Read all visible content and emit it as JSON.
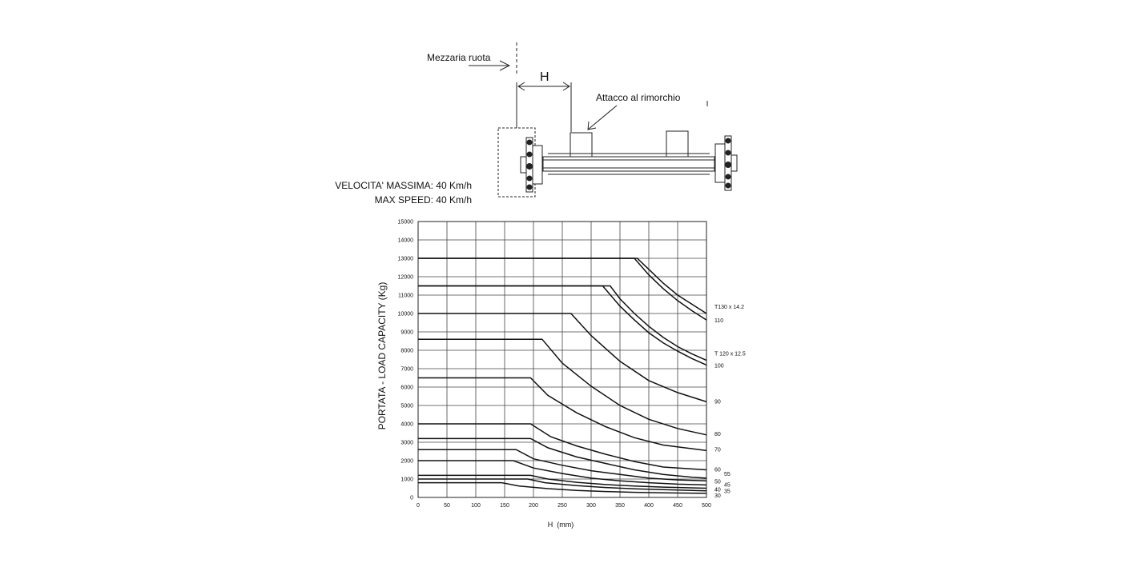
{
  "diagram": {
    "wheel_centerline_label": "Mezzaria ruota",
    "dimension_label": "H",
    "trailer_mount_label": "Attacco al rimorchio"
  },
  "speed": {
    "it": "VELOCITA' MASSIMA: 40 Km/h",
    "en": "MAX SPEED: 40 Km/h"
  },
  "chart_data": {
    "type": "line",
    "title": "",
    "xlabel": "H  (mm)",
    "ylabel": "PORTATA - LOAD CAPACITY (Kg)",
    "xlim": [
      0,
      500
    ],
    "ylim": [
      0,
      15000
    ],
    "grid": true,
    "x_ticks": [
      0,
      50,
      100,
      150,
      200,
      250,
      300,
      350,
      400,
      450,
      500
    ],
    "x_tick_labels": [
      "0",
      "50",
      "100",
      "150",
      "200",
      "250",
      "300",
      "350",
      "400",
      "450",
      "500"
    ],
    "y_ticks": [
      0,
      1000,
      2000,
      3000,
      4000,
      5000,
      6000,
      7000,
      8000,
      9000,
      10000,
      11000,
      12000,
      13000,
      14000,
      15000
    ],
    "y_tick_labels": [
      "0",
      "1000",
      "2000",
      "3000",
      "4000",
      "5000",
      "6000",
      "7000",
      "8000",
      "9000",
      "10000",
      "11000",
      "12000",
      "13000",
      "14000",
      "15000"
    ],
    "series": [
      {
        "name": "T130 x 14.2",
        "values": [
          [
            0,
            13000
          ],
          [
            380,
            13000
          ],
          [
            400,
            12400
          ],
          [
            425,
            11650
          ],
          [
            450,
            11000
          ],
          [
            475,
            10500
          ],
          [
            500,
            10000
          ]
        ]
      },
      {
        "name": "110",
        "values": [
          [
            0,
            13000
          ],
          [
            375,
            13000
          ],
          [
            400,
            12100
          ],
          [
            425,
            11350
          ],
          [
            450,
            10700
          ],
          [
            475,
            10150
          ],
          [
            500,
            9650
          ]
        ]
      },
      {
        "name": "T 120 x 12.5",
        "values": [
          [
            0,
            11500
          ],
          [
            333,
            11500
          ],
          [
            350,
            10800
          ],
          [
            375,
            10000
          ],
          [
            400,
            9300
          ],
          [
            425,
            8700
          ],
          [
            450,
            8200
          ],
          [
            475,
            7800
          ],
          [
            500,
            7450
          ]
        ]
      },
      {
        "name": "100",
        "values": [
          [
            0,
            11500
          ],
          [
            320,
            11500
          ],
          [
            350,
            10400
          ],
          [
            375,
            9650
          ],
          [
            400,
            8950
          ],
          [
            425,
            8400
          ],
          [
            450,
            7950
          ],
          [
            475,
            7550
          ],
          [
            500,
            7200
          ]
        ]
      },
      {
        "name": "90",
        "values": [
          [
            0,
            10000
          ],
          [
            265,
            10000
          ],
          [
            300,
            8800
          ],
          [
            350,
            7400
          ],
          [
            400,
            6350
          ],
          [
            450,
            5700
          ],
          [
            500,
            5200
          ]
        ]
      },
      {
        "name": "80",
        "values": [
          [
            0,
            8600
          ],
          [
            215,
            8600
          ],
          [
            250,
            7300
          ],
          [
            300,
            6050
          ],
          [
            350,
            5000
          ],
          [
            400,
            4250
          ],
          [
            450,
            3750
          ],
          [
            500,
            3400
          ]
        ]
      },
      {
        "name": "70",
        "values": [
          [
            0,
            6500
          ],
          [
            195,
            6500
          ],
          [
            225,
            5550
          ],
          [
            275,
            4600
          ],
          [
            325,
            3850
          ],
          [
            375,
            3250
          ],
          [
            425,
            2850
          ],
          [
            500,
            2550
          ]
        ]
      },
      {
        "name": "60",
        "values": [
          [
            0,
            4000
          ],
          [
            195,
            4000
          ],
          [
            230,
            3300
          ],
          [
            275,
            2800
          ],
          [
            325,
            2350
          ],
          [
            375,
            1950
          ],
          [
            425,
            1650
          ],
          [
            475,
            1550
          ],
          [
            500,
            1500
          ]
        ]
      },
      {
        "name": "55",
        "values": [
          [
            0,
            3200
          ],
          [
            195,
            3200
          ],
          [
            225,
            2700
          ],
          [
            275,
            2200
          ],
          [
            325,
            1850
          ],
          [
            375,
            1500
          ],
          [
            425,
            1250
          ],
          [
            475,
            1100
          ],
          [
            500,
            1050
          ]
        ]
      },
      {
        "name": "50",
        "values": [
          [
            0,
            2600
          ],
          [
            170,
            2600
          ],
          [
            200,
            2100
          ],
          [
            250,
            1750
          ],
          [
            300,
            1450
          ],
          [
            350,
            1250
          ],
          [
            400,
            1050
          ],
          [
            450,
            950
          ],
          [
            500,
            900
          ]
        ]
      },
      {
        "name": "45",
        "values": [
          [
            0,
            2000
          ],
          [
            165,
            2000
          ],
          [
            200,
            1600
          ],
          [
            250,
            1300
          ],
          [
            300,
            1050
          ],
          [
            350,
            900
          ],
          [
            400,
            800
          ],
          [
            450,
            720
          ],
          [
            500,
            680
          ]
        ]
      },
      {
        "name": "40",
        "values": [
          [
            0,
            1200
          ],
          [
            195,
            1200
          ],
          [
            225,
            1000
          ],
          [
            275,
            820
          ],
          [
            325,
            700
          ],
          [
            375,
            620
          ],
          [
            425,
            560
          ],
          [
            500,
            500
          ]
        ]
      },
      {
        "name": "35",
        "values": [
          [
            0,
            1000
          ],
          [
            190,
            1000
          ],
          [
            220,
            800
          ],
          [
            275,
            640
          ],
          [
            325,
            540
          ],
          [
            375,
            470
          ],
          [
            425,
            420
          ],
          [
            500,
            360
          ]
        ]
      },
      {
        "name": "30",
        "values": [
          [
            0,
            800
          ],
          [
            145,
            800
          ],
          [
            175,
            620
          ],
          [
            225,
            480
          ],
          [
            275,
            380
          ],
          [
            325,
            320
          ],
          [
            375,
            280
          ],
          [
            425,
            250
          ],
          [
            500,
            220
          ]
        ]
      }
    ]
  }
}
